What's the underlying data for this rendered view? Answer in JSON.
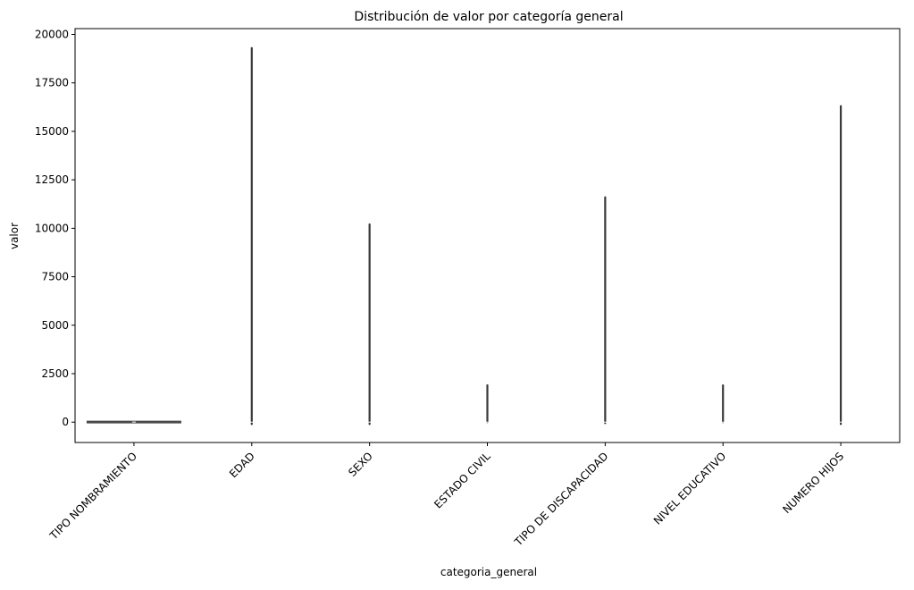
{
  "chart_data": {
    "type": "violin",
    "title": "Distribución de valor por categoría general",
    "xlabel": "categoria_general",
    "ylabel": "valor",
    "ylim": [
      -1050,
      20300
    ],
    "yticks": [
      0,
      2500,
      5000,
      7500,
      10000,
      12500,
      15000,
      17500,
      20000
    ],
    "ytick_labels": [
      "0",
      "2500",
      "5000",
      "7500",
      "10000",
      "12500",
      "15000",
      "17500",
      "20000"
    ],
    "xtick_rotation_deg": 45,
    "grid": false,
    "legend": "none",
    "color": "#444444",
    "categories": [
      "TIPO NOMBRAMIENTO",
      "EDAD",
      "SEXO",
      "ESTADO CIVIL",
      "TIPO DE DISCAPACIDAD",
      "NIVEL EDUCATIVO",
      "NUMERO HIJOS"
    ],
    "distributions": [
      {
        "category": "TIPO NOMBRAMIENTO",
        "min": 0,
        "max": 20,
        "median": 5
      },
      {
        "category": "EDAD",
        "min": -100,
        "max": 19300,
        "median": 0
      },
      {
        "category": "SEXO",
        "min": -100,
        "max": 10200,
        "median": 0
      },
      {
        "category": "ESTADO CIVIL",
        "min": 0,
        "max": 1900,
        "median": 0
      },
      {
        "category": "TIPO DE DISCAPACIDAD",
        "min": -50,
        "max": 11600,
        "median": 0
      },
      {
        "category": "NIVEL EDUCATIVO",
        "min": 0,
        "max": 1900,
        "median": 0
      },
      {
        "category": "NUMERO HIJOS",
        "min": -100,
        "max": 16300,
        "median": 0
      }
    ]
  }
}
